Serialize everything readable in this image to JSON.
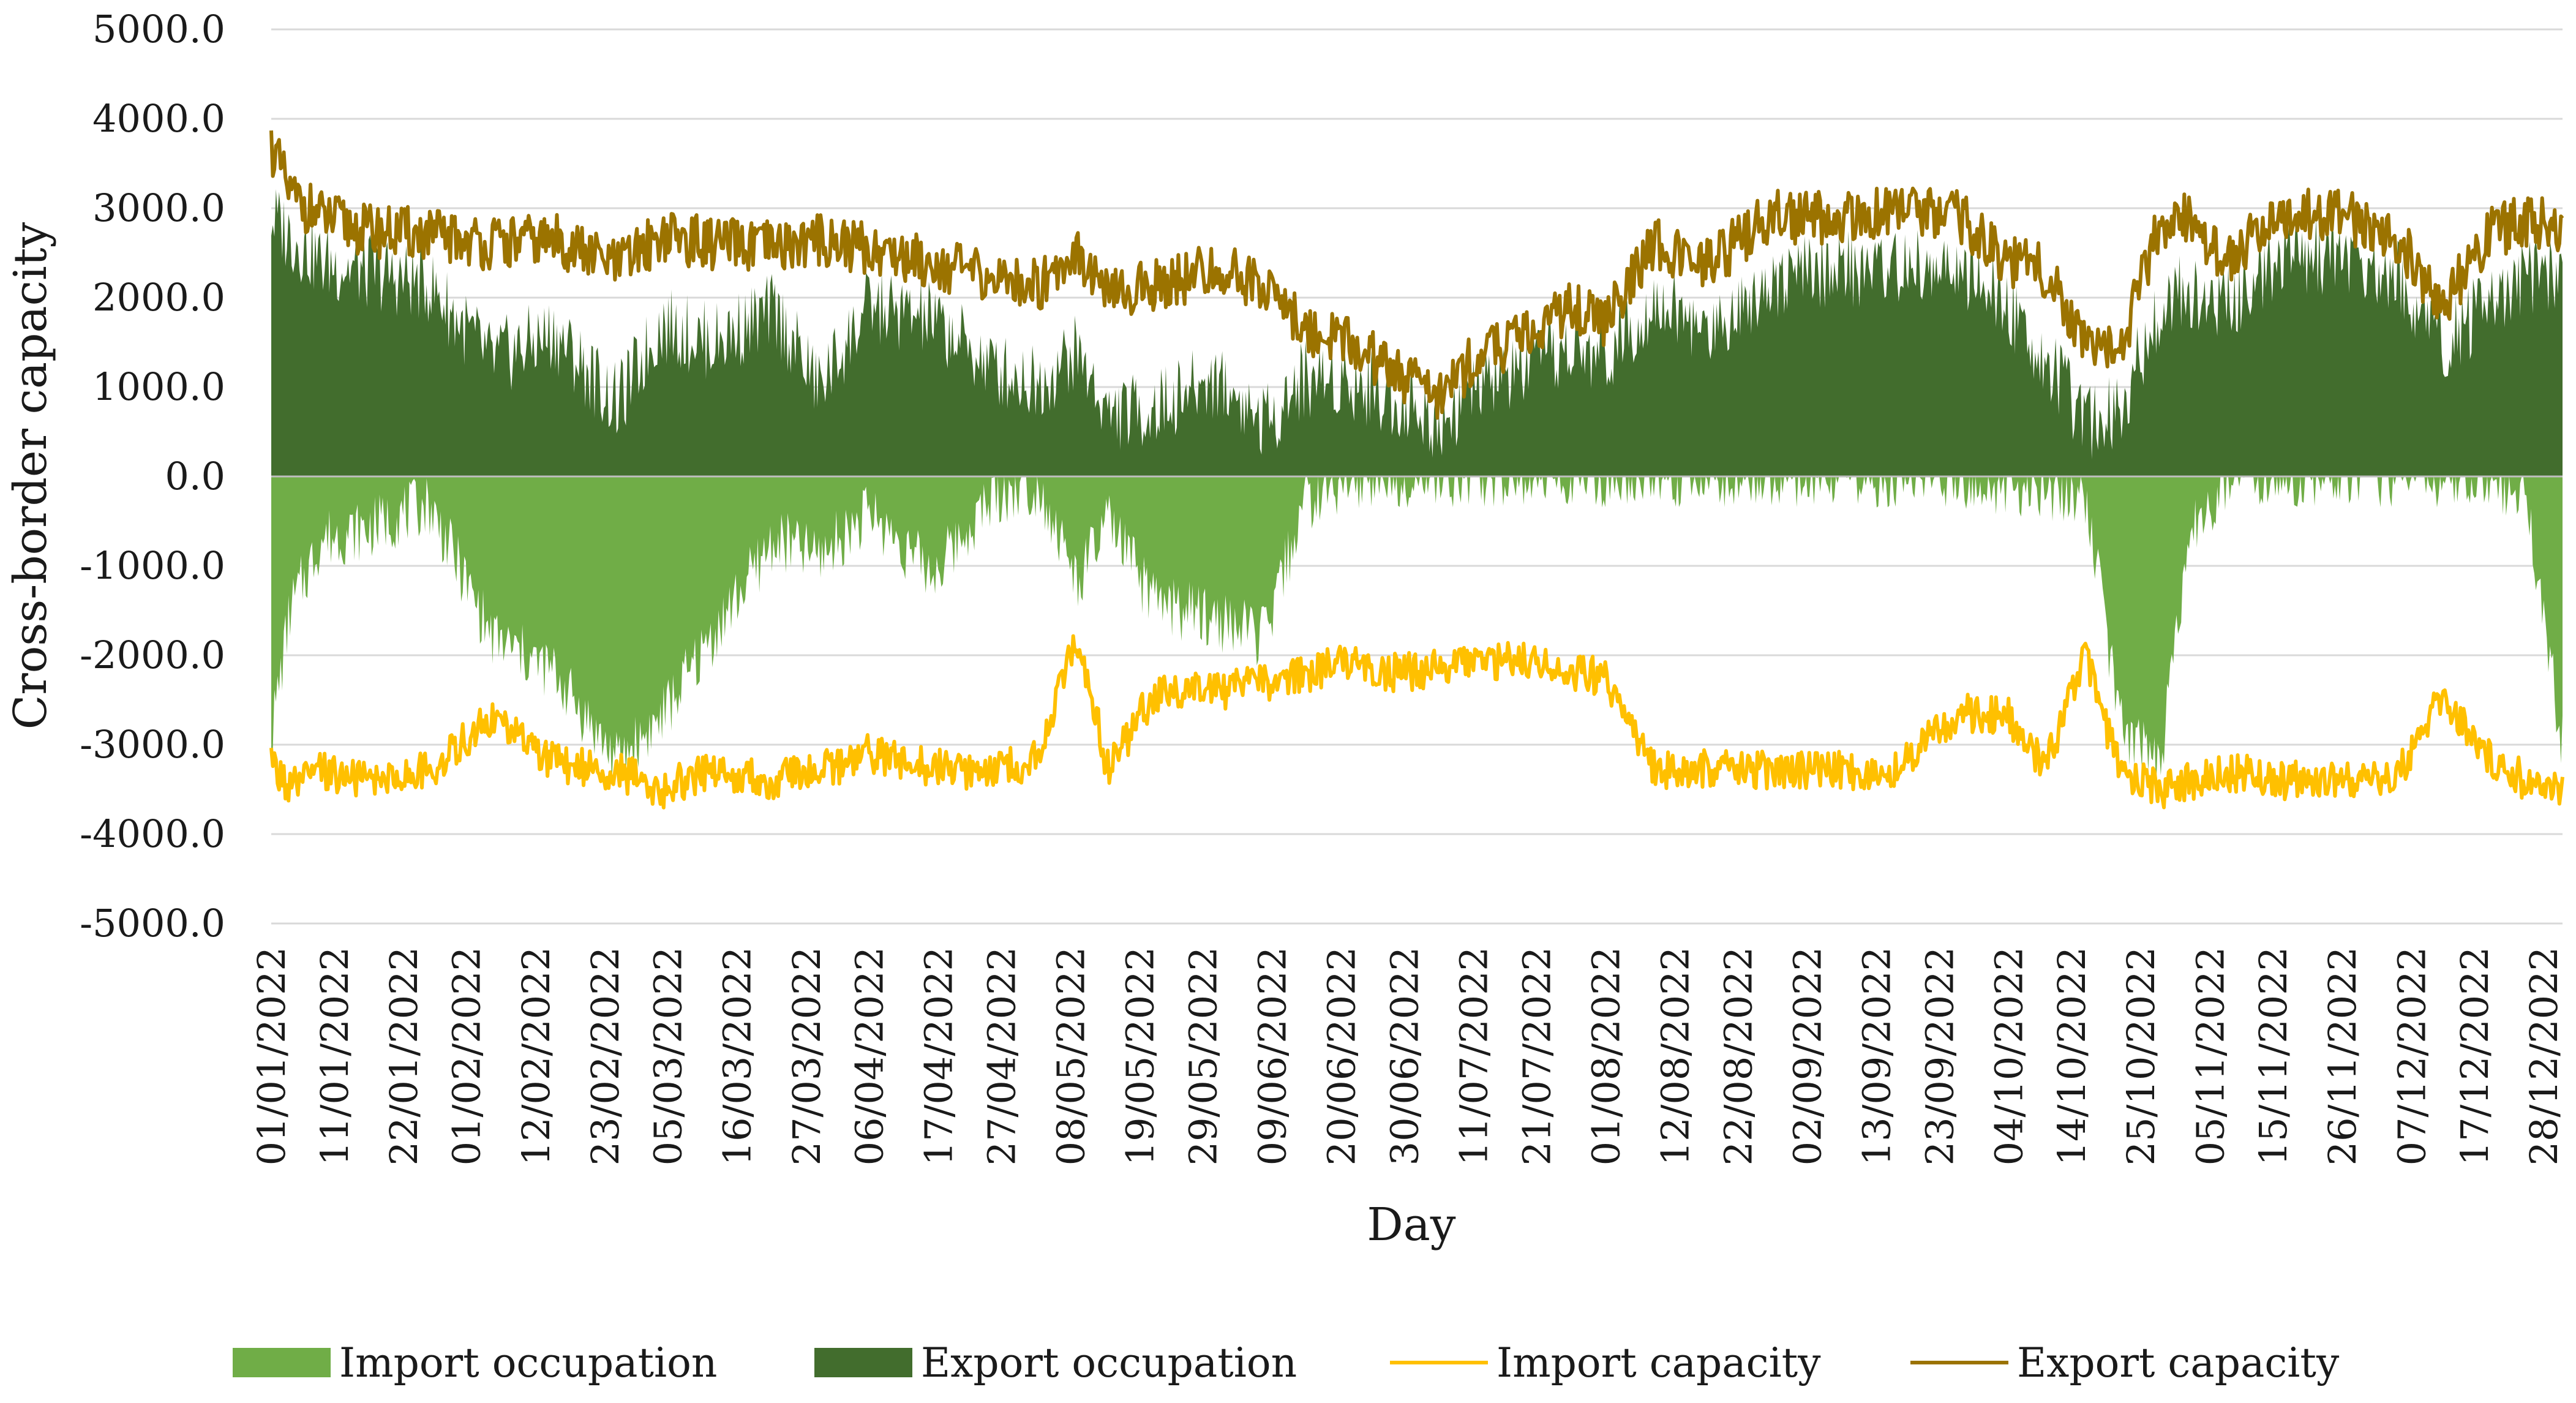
{
  "chart_data": {
    "type": "area",
    "title": "",
    "xlabel": "Day",
    "ylabel": "Cross-border capacity",
    "ylim": [
      -5000,
      5000
    ],
    "y_ticks": [
      "5000.0",
      "4000.0",
      "3000.0",
      "2000.0",
      "1000.0",
      "0.0",
      "-1000.0",
      "-2000.0",
      "-3000.0",
      "-4000.0",
      "-5000.0"
    ],
    "y_tick_values": [
      5000,
      4000,
      3000,
      2000,
      1000,
      0,
      -1000,
      -2000,
      -3000,
      -4000,
      -5000
    ],
    "x_ticks": [
      "01/01/2022",
      "11/01/2022",
      "22/01/2022",
      "01/02/2022",
      "12/02/2022",
      "23/02/2022",
      "05/03/2022",
      "16/03/2022",
      "27/03/2022",
      "06/04/2022",
      "17/04/2022",
      "27/04/2022",
      "08/05/2022",
      "19/05/2022",
      "29/05/2022",
      "09/06/2022",
      "20/06/2022",
      "30/06/2022",
      "11/07/2022",
      "21/07/2022",
      "01/08/2022",
      "12/08/2022",
      "22/08/2022",
      "02/09/2022",
      "13/09/2022",
      "23/09/2022",
      "04/10/2022",
      "14/10/2022",
      "25/10/2022",
      "05/11/2022",
      "15/11/2022",
      "26/11/2022",
      "07/12/2022",
      "17/12/2022",
      "28/12/2022"
    ],
    "x_tick_days": [
      0,
      10,
      21,
      31,
      42,
      53,
      63,
      74,
      85,
      95,
      106,
      116,
      127,
      138,
      148,
      159,
      170,
      180,
      191,
      201,
      212,
      223,
      233,
      244,
      255,
      265,
      276,
      286,
      297,
      308,
      318,
      329,
      340,
      350,
      361
    ],
    "x_range_days": [
      0,
      364
    ],
    "legend": [
      "Import occupation",
      "Export occupation",
      "Import capacity",
      "Export capacity"
    ],
    "legend_position": "bottom",
    "colors": {
      "import_occupation": "#70ad47",
      "export_occupation": "#426d2d",
      "import_capacity": "#ffc000",
      "export_capacity": "#9b7300"
    },
    "series": [
      {
        "name": "Export capacity",
        "type": "line",
        "x": [
          0,
          3,
          8,
          15,
          25,
          35,
          45,
          55,
          62,
          70,
          80,
          87,
          95,
          105,
          115,
          122,
          128,
          133,
          140,
          150,
          158,
          164,
          170,
          178,
          185,
          192,
          200,
          206,
          212,
          220,
          228,
          238,
          248,
          258,
          268,
          276,
          282,
          288,
          294,
          300,
          305,
          310,
          320,
          330,
          338,
          345,
          352,
          358,
          364
        ],
        "values": [
          3700,
          3150,
          2900,
          2750,
          2700,
          2600,
          2650,
          2350,
          2700,
          2600,
          2550,
          2650,
          2550,
          2400,
          2200,
          2150,
          2550,
          2000,
          2150,
          2300,
          2150,
          1650,
          1550,
          1200,
          900,
          1350,
          1600,
          1900,
          1750,
          2600,
          2350,
          2900,
          2900,
          2950,
          2900,
          2400,
          2300,
          1500,
          1500,
          2800,
          2900,
          2400,
          2950,
          2900,
          2650,
          1900,
          2700,
          2850,
          2800
        ]
      },
      {
        "name": "Export occupation",
        "type": "area",
        "x": [
          0,
          3,
          8,
          15,
          25,
          35,
          45,
          55,
          62,
          70,
          80,
          87,
          95,
          105,
          115,
          122,
          128,
          133,
          140,
          150,
          158,
          164,
          170,
          178,
          185,
          192,
          200,
          206,
          212,
          220,
          228,
          238,
          248,
          258,
          268,
          276,
          282,
          288,
          294,
          300,
          305,
          310,
          320,
          330,
          338,
          345,
          352,
          358,
          364
        ],
        "values": [
          2900,
          2700,
          2400,
          2300,
          2150,
          1300,
          1600,
          800,
          1700,
          1500,
          1850,
          1000,
          1900,
          1750,
          1200,
          1050,
          1400,
          700,
          750,
          1100,
          600,
          1100,
          1100,
          900,
          600,
          1000,
          1250,
          1400,
          1350,
          2000,
          1600,
          2200,
          2300,
          2350,
          2300,
          1900,
          1300,
          600,
          800,
          1900,
          2100,
          1900,
          2500,
          2450,
          2200,
          1500,
          1900,
          2200,
          2300
        ]
      },
      {
        "name": "Import capacity",
        "type": "line",
        "x": [
          0,
          3,
          8,
          15,
          25,
          35,
          45,
          55,
          62,
          70,
          80,
          87,
          95,
          105,
          115,
          122,
          128,
          133,
          140,
          150,
          158,
          164,
          170,
          178,
          185,
          192,
          200,
          206,
          212,
          220,
          228,
          238,
          248,
          258,
          268,
          276,
          282,
          288,
          294,
          300,
          305,
          310,
          320,
          330,
          338,
          345,
          352,
          358,
          364
        ],
        "values": [
          -3200,
          -3500,
          -3300,
          -3400,
          -3300,
          -2700,
          -3200,
          -3300,
          -3500,
          -3300,
          -3400,
          -3300,
          -3100,
          -3250,
          -3300,
          -3150,
          -1800,
          -3300,
          -2450,
          -2400,
          -2300,
          -2200,
          -2100,
          -2200,
          -2150,
          -2100,
          -2050,
          -2200,
          -2250,
          -3300,
          -3250,
          -3300,
          -3300,
          -3250,
          -2650,
          -2700,
          -3250,
          -2000,
          -3350,
          -3500,
          -3400,
          -3300,
          -3400,
          -3400,
          -3300,
          -2450,
          -3100,
          -3400,
          -3500
        ]
      },
      {
        "name": "Import occupation",
        "type": "area",
        "x": [
          0,
          3,
          8,
          15,
          25,
          35,
          45,
          55,
          62,
          70,
          80,
          87,
          95,
          105,
          115,
          122,
          128,
          133,
          140,
          150,
          158,
          164,
          170,
          178,
          185,
          192,
          200,
          206,
          212,
          220,
          228,
          238,
          248,
          258,
          268,
          276,
          282,
          288,
          294,
          300,
          305,
          310,
          320,
          330,
          338,
          345,
          352,
          358,
          364
        ],
        "values": [
          -2900,
          -1500,
          -700,
          -600,
          -300,
          -1800,
          -2200,
          -3200,
          -2700,
          -1800,
          -700,
          -900,
          -400,
          -1100,
          -200,
          -100,
          -1200,
          -500,
          -1400,
          -1600,
          -1800,
          -300,
          -50,
          0,
          0,
          0,
          0,
          0,
          0,
          0,
          0,
          0,
          0,
          0,
          0,
          -100,
          -150,
          -200,
          -2800,
          -3300,
          -600,
          -100,
          0,
          0,
          0,
          0,
          0,
          -200,
          -3000
        ]
      }
    ]
  }
}
